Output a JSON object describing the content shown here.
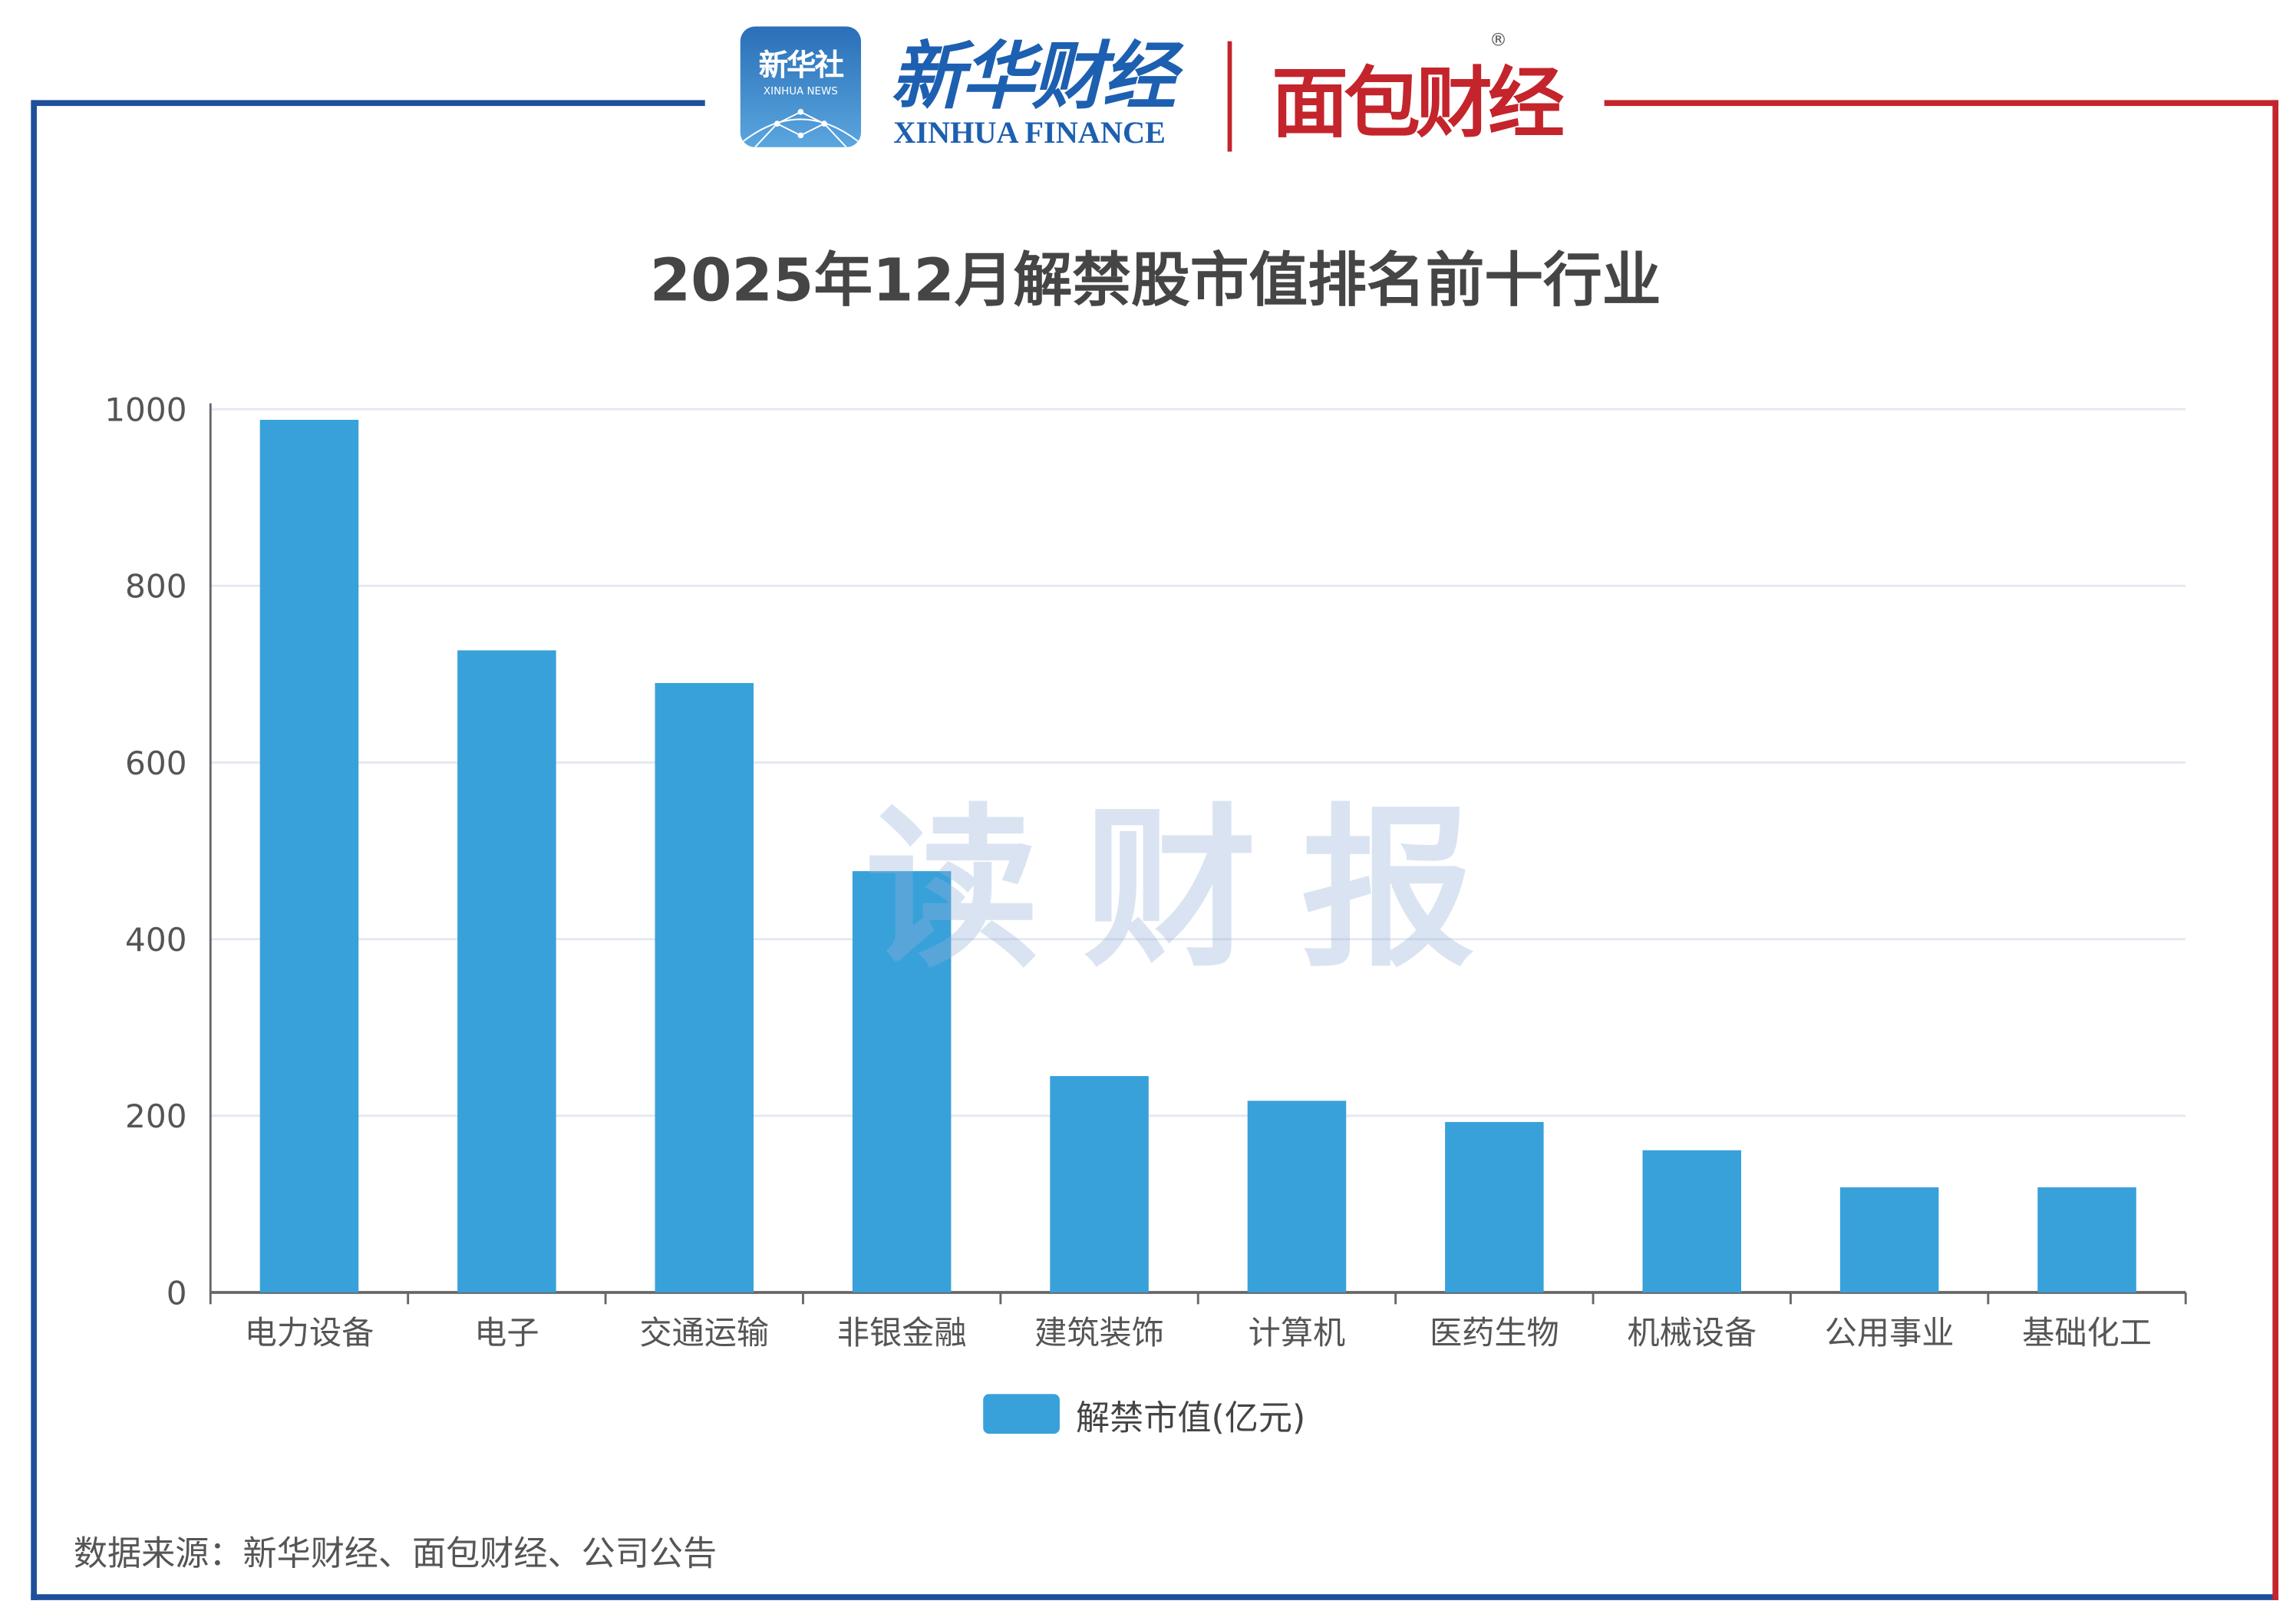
{
  "header": {
    "xinhua_news_cn": "新华社",
    "xinhua_news_en": "XINHUA NEWS",
    "xinhua_finance_cn": "新华财经",
    "xinhua_finance_en": "XINHUA FINANCE",
    "mianbao_logo": "面包财经",
    "registered_mark": "®"
  },
  "watermark": "读财报",
  "colors": {
    "bar": "#38a1da",
    "frame_blue": "#1f4e9c",
    "frame_red": "#c4242b",
    "grid": "#e3e8f3"
  },
  "chart_data": {
    "type": "bar",
    "title": "2025年12月解禁股市值排名前十行业",
    "categories": [
      "电力设备",
      "电子",
      "交通运输",
      "非银金融",
      "建筑装饰",
      "计算机",
      "医药生物",
      "机械设备",
      "公用事业",
      "基础化工"
    ],
    "series": [
      {
        "name": "解禁市值(亿元)",
        "values": [
          988,
          727,
          690,
          477,
          245,
          217,
          193,
          161,
          119,
          119
        ]
      }
    ],
    "ylim": [
      0,
      1000
    ],
    "yticks": [
      "0",
      "200",
      "400",
      "600",
      "800",
      "1000"
    ],
    "xlabel": "",
    "ylabel": "",
    "grid": true,
    "legend": "bottom-center"
  },
  "footer": {
    "source": "数据来源：新华财经、面包财经、公司公告"
  }
}
